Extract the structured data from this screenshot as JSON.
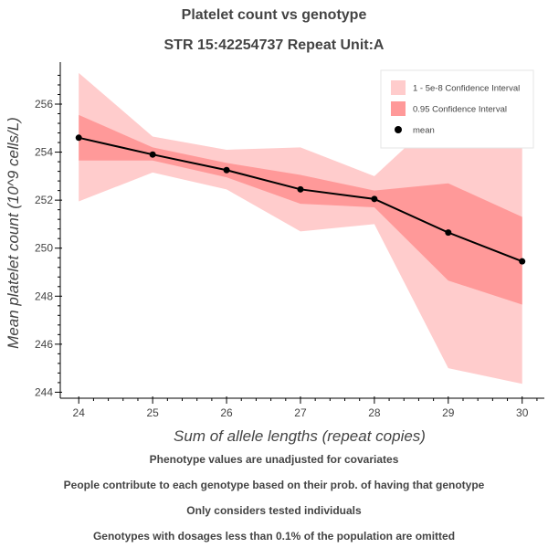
{
  "title": "Platelet count vs genotype",
  "subtitle": "STR 15:42254737 Repeat Unit:A",
  "notes": [
    "Phenotype values are unadjusted for covariates",
    "People contribute to each genotype based on their prob. of having that genotype",
    "Only considers tested individuals",
    "Genotypes with dosages less than 0.1% of the population are omitted"
  ],
  "chart_data": {
    "type": "line",
    "title": "Platelet count vs genotype",
    "subtitle": "STR 15:42254737 Repeat Unit:A",
    "xlabel": "Sum of allele lengths (repeat copies)",
    "ylabel": "Mean platelet count (10^9 cells/L)",
    "xlim": [
      23.75,
      30.3
    ],
    "ylim": [
      243.75,
      257.75
    ],
    "xticks": [
      24,
      25,
      26,
      27,
      28,
      29,
      30
    ],
    "yticks": [
      244,
      246,
      248,
      250,
      252,
      254,
      256
    ],
    "x": [
      24,
      25,
      26,
      27,
      28,
      29,
      30
    ],
    "series": [
      {
        "name": "mean",
        "values": [
          254.6,
          253.9,
          253.25,
          252.45,
          252.05,
          250.65,
          249.45
        ],
        "color": "#000000"
      },
      {
        "name": "0.95 Confidence Interval",
        "lower": [
          253.65,
          253.65,
          252.95,
          251.85,
          251.7,
          248.65,
          247.65
        ],
        "upper": [
          255.55,
          254.2,
          253.55,
          253.05,
          252.4,
          252.7,
          251.3
        ],
        "color": "#ff9999"
      },
      {
        "name": "1 - 5e-8 Confidence Interval",
        "lower": [
          251.95,
          253.15,
          252.45,
          250.7,
          251.0,
          245.0,
          244.35
        ],
        "upper": [
          257.3,
          254.65,
          254.1,
          254.2,
          253.0,
          255.85,
          254.6
        ],
        "color": "#ffcccc"
      }
    ],
    "legend_position": "top-right",
    "grid": false
  }
}
